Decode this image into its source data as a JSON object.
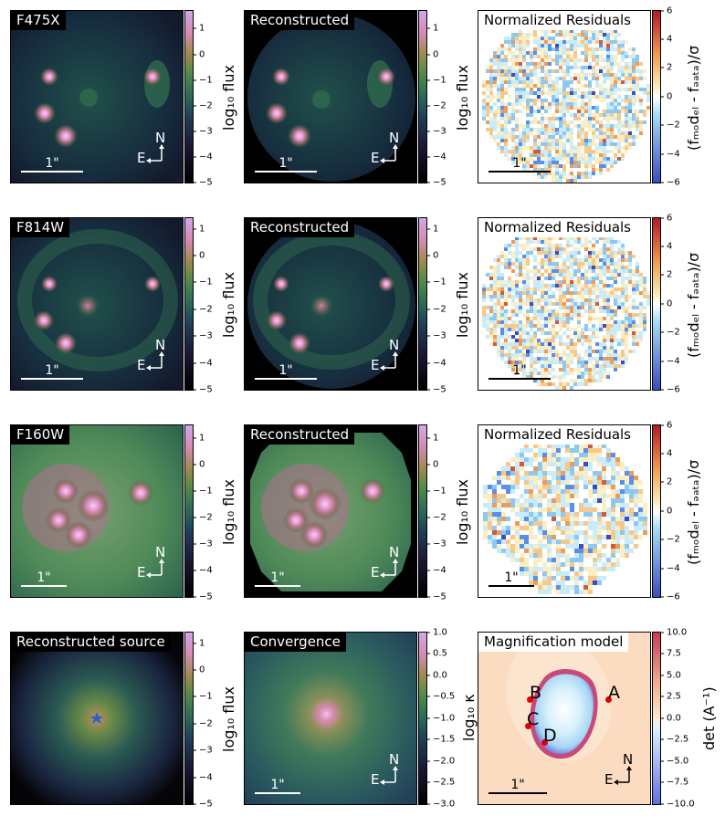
{
  "rows": [
    {
      "data_title": "F475X",
      "recon_title": "Reconstructed",
      "resid_title": "Normalized Residuals"
    },
    {
      "data_title": "F814W",
      "recon_title": "Reconstructed",
      "resid_title": "Normalized Residuals"
    },
    {
      "data_title": "F160W",
      "recon_title": "Reconstructed",
      "resid_title": "Normalized Residuals"
    }
  ],
  "bottom": {
    "source_title": "Reconstructed source",
    "kappa_title": "Convergence",
    "mag_title": "Magnification model"
  },
  "scale_label": "1\"",
  "compass": {
    "north": "N",
    "east": "E"
  },
  "image_labels": {
    "a": "A",
    "b": "B",
    "c": "C",
    "d": "D"
  },
  "colorbars": {
    "flux_label": "log₁₀ flux",
    "flux_ticks": [
      "1",
      "0",
      "−1",
      "−2",
      "−3",
      "−4",
      "−5"
    ],
    "resid_label": "(fₘₒdₑₗ - fₔₐₜₐ)/σ",
    "resid_ticks": [
      "6",
      "4",
      "2",
      "0",
      "−2",
      "−4",
      "−6"
    ],
    "kappa_label": "log₁₀ κ",
    "kappa_ticks": [
      "1.0",
      "0.5",
      "0.0",
      "−0.5",
      "−1.0",
      "−1.5",
      "−2.0",
      "−2.5",
      "−3.0"
    ],
    "det_label": "det (A⁻¹)",
    "det_ticks": [
      "10.0",
      "7.5",
      "5.0",
      "2.5",
      "0.0",
      "−2.5",
      "−5.0",
      "−7.5",
      "−10.0"
    ]
  },
  "colors": {
    "cubehelix_top": "#c9a0dc",
    "residual_top": "#b2182b",
    "residual_bottom": "#3b4cc0",
    "star": "#3060d0",
    "image_marker": "#e00000"
  }
}
